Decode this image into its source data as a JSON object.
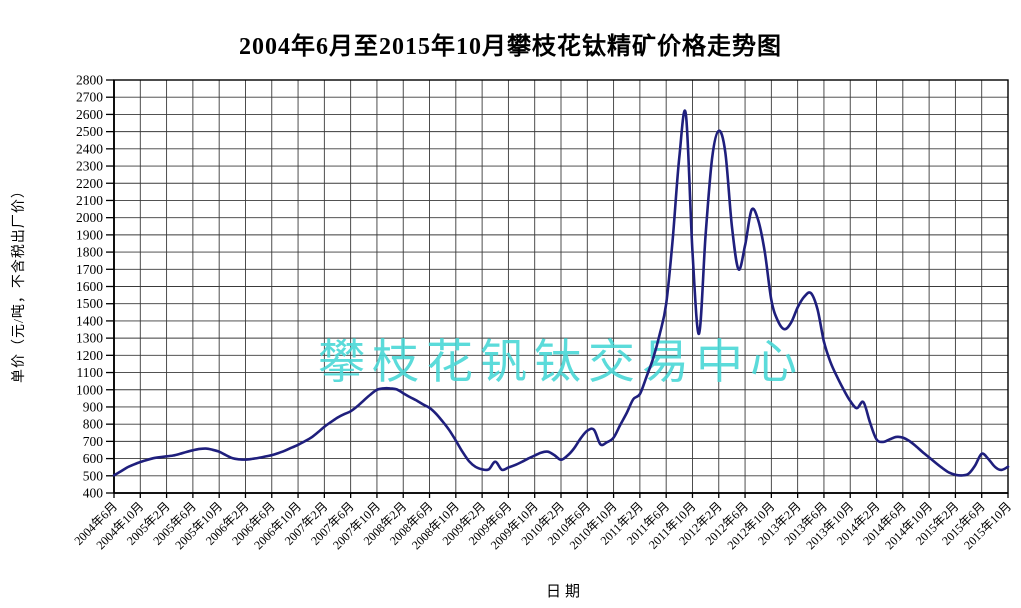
{
  "title": "2004年6月至2015年10月攀枝花钛精矿价格走势图",
  "watermark": {
    "text": "攀枝花钒钛交易中心",
    "color": "#45d7d5"
  },
  "axes": {
    "xlabel": "日期",
    "ylabel": "单价（元/吨，不含税出厂价）"
  },
  "colors": {
    "line": "#1f1f7d",
    "grid": "#3a3a3a",
    "frame": "#000000",
    "text": "#000000"
  },
  "chart_data": {
    "type": "line",
    "title": "2004年6月至2015年10月攀枝花钛精矿价格走势图",
    "xlabel": "日期",
    "ylabel": "单价（元/吨，不含税出厂价）",
    "ylim": [
      400,
      2800
    ],
    "y_tick_step": 100,
    "y_tick_labels": [
      "2800",
      "2700",
      "2600",
      "2500",
      "2400",
      "2300",
      "2200",
      "2100",
      "2000",
      "1900",
      "1800",
      "1700",
      "1600",
      "1500",
      "1400",
      "1300",
      "1200",
      "1100",
      "1000",
      "900",
      "800",
      "700",
      "600",
      "500",
      "400"
    ],
    "grid": true,
    "legend": "none",
    "start_month": "2004年6月",
    "interval": "monthly",
    "x_tick_every_n_months": 4,
    "x_tick_labels": [
      "2004年6月",
      "2004年10月",
      "2005年2月",
      "2005年6月",
      "2005年10月",
      "2006年2月",
      "2006年6月",
      "2006年10月",
      "2007年2月",
      "2007年6月",
      "2007年10月",
      "2008年2月",
      "2008年6月",
      "2008年10月",
      "2009年2月",
      "2009年6月",
      "2009年10月",
      "2010年2月",
      "2010年6月",
      "2010年10月",
      "2011年2月",
      "2011年6月",
      "2011年10月",
      "2012年2月",
      "2012年6月",
      "2012年10月",
      "2013年2月",
      "2013年6月",
      "2013年10月",
      "2014年2月",
      "2014年6月",
      "2014年10月",
      "2015年2月",
      "2015年6月",
      "2015年10月"
    ],
    "values": [
      503,
      525,
      548,
      565,
      580,
      592,
      602,
      608,
      613,
      618,
      627,
      638,
      648,
      656,
      658,
      651,
      640,
      620,
      603,
      596,
      594,
      598,
      604,
      612,
      620,
      632,
      646,
      663,
      680,
      700,
      722,
      752,
      785,
      812,
      838,
      858,
      875,
      903,
      938,
      972,
      1000,
      1008,
      1008,
      1002,
      980,
      958,
      938,
      915,
      895,
      860,
      815,
      765,
      705,
      640,
      585,
      552,
      538,
      537,
      582,
      535,
      548,
      562,
      580,
      600,
      618,
      635,
      640,
      620,
      593,
      618,
      660,
      718,
      762,
      768,
      683,
      695,
      722,
      795,
      865,
      945,
      975,
      1075,
      1180,
      1320,
      1500,
      1880,
      2350,
      2600,
      1800,
      1325,
      1900,
      2350,
      2505,
      2380,
      1950,
      1700,
      1840,
      2045,
      1985,
      1800,
      1520,
      1400,
      1352,
      1390,
      1478,
      1540,
      1562,
      1470,
      1280,
      1160,
      1075,
      1000,
      935,
      893,
      928,
      810,
      712,
      697,
      712,
      726,
      722,
      702,
      672,
      638,
      607,
      575,
      545,
      520,
      506,
      502,
      512,
      560,
      628,
      598,
      552,
      534,
      553
    ]
  }
}
